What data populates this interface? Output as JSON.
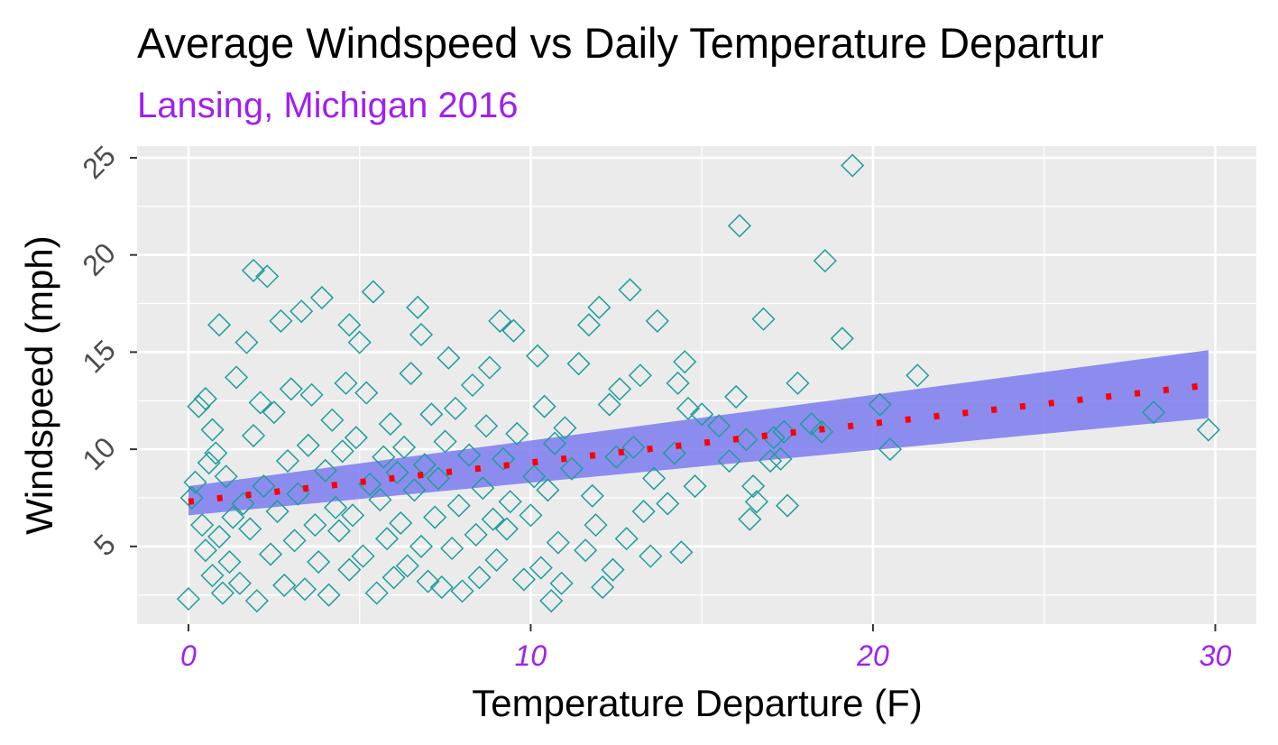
{
  "colors": {
    "subtitle": "#a020f0",
    "x_tick_labels": "#a020f0",
    "y_tick_labels": "#4d4d4d",
    "panel_background": "#ebebeb",
    "grid": "#ffffff",
    "points": "#1f9e9a",
    "ribbon": "#7b7bf0",
    "fit_line": "#ff0000"
  },
  "chart_data": {
    "type": "scatter",
    "title": "Average Windspeed vs Daily Temperature Departur",
    "subtitle": "Lansing, Michigan 2016",
    "xlabel": "Temperature Departure (F)",
    "ylabel": "Windspeed (mph)",
    "xlim": [
      -1.5,
      31.2
    ],
    "ylim": [
      1,
      25.6
    ],
    "x_ticks": [
      0,
      10,
      20,
      30
    ],
    "x_tick_labels": [
      "0",
      "10",
      "20",
      "30"
    ],
    "y_ticks": [
      5,
      10,
      15,
      20,
      25
    ],
    "y_tick_labels": [
      "5",
      "10",
      "15",
      "20",
      "25"
    ],
    "grid": true,
    "marker": "open-diamond",
    "points": [
      [
        0.0,
        2.3
      ],
      [
        0.1,
        7.5
      ],
      [
        0.2,
        8.3
      ],
      [
        0.3,
        12.2
      ],
      [
        0.4,
        6.1
      ],
      [
        0.5,
        12.6
      ],
      [
        0.5,
        4.8
      ],
      [
        0.6,
        9.3
      ],
      [
        0.7,
        3.5
      ],
      [
        0.7,
        11.0
      ],
      [
        0.8,
        9.8
      ],
      [
        0.9,
        16.4
      ],
      [
        0.9,
        5.5
      ],
      [
        1.0,
        2.6
      ],
      [
        1.1,
        8.6
      ],
      [
        1.2,
        4.2
      ],
      [
        1.3,
        6.5
      ],
      [
        1.4,
        13.7
      ],
      [
        1.5,
        3.1
      ],
      [
        1.6,
        7.2
      ],
      [
        1.7,
        15.5
      ],
      [
        1.8,
        5.9
      ],
      [
        1.9,
        10.7
      ],
      [
        1.9,
        19.2
      ],
      [
        2.0,
        2.2
      ],
      [
        2.1,
        12.4
      ],
      [
        2.2,
        8.1
      ],
      [
        2.3,
        18.9
      ],
      [
        2.4,
        4.6
      ],
      [
        2.5,
        11.9
      ],
      [
        2.6,
        6.8
      ],
      [
        2.7,
        16.6
      ],
      [
        2.8,
        3.0
      ],
      [
        2.9,
        9.4
      ],
      [
        3.0,
        13.1
      ],
      [
        3.1,
        5.3
      ],
      [
        3.2,
        7.7
      ],
      [
        3.3,
        17.1
      ],
      [
        3.4,
        2.8
      ],
      [
        3.5,
        10.2
      ],
      [
        3.6,
        12.8
      ],
      [
        3.7,
        6.1
      ],
      [
        3.8,
        4.2
      ],
      [
        3.9,
        17.8
      ],
      [
        4.0,
        8.9
      ],
      [
        4.1,
        2.5
      ],
      [
        4.2,
        11.5
      ],
      [
        4.3,
        7.0
      ],
      [
        4.4,
        5.8
      ],
      [
        4.5,
        9.9
      ],
      [
        4.6,
        13.4
      ],
      [
        4.7,
        3.8
      ],
      [
        4.7,
        16.4
      ],
      [
        4.8,
        6.6
      ],
      [
        4.9,
        10.6
      ],
      [
        5.0,
        15.5
      ],
      [
        5.1,
        4.5
      ],
      [
        5.2,
        12.9
      ],
      [
        5.3,
        8.2
      ],
      [
        5.4,
        18.1
      ],
      [
        5.5,
        2.6
      ],
      [
        5.6,
        7.4
      ],
      [
        5.7,
        9.6
      ],
      [
        5.8,
        5.4
      ],
      [
        5.9,
        11.3
      ],
      [
        6.0,
        3.4
      ],
      [
        6.1,
        8.8
      ],
      [
        6.2,
        6.2
      ],
      [
        6.3,
        10.1
      ],
      [
        6.4,
        4.0
      ],
      [
        6.5,
        13.9
      ],
      [
        6.6,
        7.9
      ],
      [
        6.7,
        17.3
      ],
      [
        6.8,
        5.0
      ],
      [
        6.8,
        15.9
      ],
      [
        6.9,
        9.2
      ],
      [
        7.0,
        3.2
      ],
      [
        7.1,
        11.8
      ],
      [
        7.2,
        6.5
      ],
      [
        7.3,
        8.5
      ],
      [
        7.4,
        2.9
      ],
      [
        7.5,
        10.4
      ],
      [
        7.6,
        14.7
      ],
      [
        7.7,
        4.9
      ],
      [
        7.8,
        12.1
      ],
      [
        7.9,
        7.1
      ],
      [
        8.0,
        2.7
      ],
      [
        8.2,
        9.7
      ],
      [
        8.3,
        13.3
      ],
      [
        8.4,
        5.6
      ],
      [
        8.5,
        3.4
      ],
      [
        8.6,
        8.0
      ],
      [
        8.7,
        11.2
      ],
      [
        8.8,
        14.2
      ],
      [
        8.9,
        6.4
      ],
      [
        9.0,
        4.3
      ],
      [
        9.1,
        16.6
      ],
      [
        9.2,
        9.5
      ],
      [
        9.3,
        5.9
      ],
      [
        9.4,
        7.3
      ],
      [
        9.5,
        16.1
      ],
      [
        9.6,
        10.8
      ],
      [
        9.8,
        3.3
      ],
      [
        10.0,
        6.6
      ],
      [
        10.1,
        8.6
      ],
      [
        10.2,
        14.8
      ],
      [
        10.3,
        3.9
      ],
      [
        10.4,
        12.2
      ],
      [
        10.5,
        7.9
      ],
      [
        10.6,
        2.2
      ],
      [
        10.7,
        10.3
      ],
      [
        10.8,
        5.2
      ],
      [
        10.9,
        3.1
      ],
      [
        11.0,
        11.1
      ],
      [
        11.2,
        9.0
      ],
      [
        11.4,
        14.4
      ],
      [
        11.6,
        4.8
      ],
      [
        11.7,
        16.4
      ],
      [
        11.8,
        7.6
      ],
      [
        11.9,
        6.1
      ],
      [
        12.0,
        17.3
      ],
      [
        12.1,
        2.9
      ],
      [
        12.3,
        12.3
      ],
      [
        12.4,
        3.8
      ],
      [
        12.5,
        9.6
      ],
      [
        12.6,
        13.1
      ],
      [
        12.8,
        5.4
      ],
      [
        12.9,
        18.2
      ],
      [
        13.0,
        10.1
      ],
      [
        13.2,
        13.8
      ],
      [
        13.3,
        6.8
      ],
      [
        13.5,
        4.5
      ],
      [
        13.6,
        8.5
      ],
      [
        13.7,
        16.6
      ],
      [
        14.0,
        7.2
      ],
      [
        14.2,
        9.8
      ],
      [
        14.3,
        13.4
      ],
      [
        14.4,
        4.7
      ],
      [
        14.5,
        14.5
      ],
      [
        14.6,
        12.1
      ],
      [
        14.8,
        8.1
      ],
      [
        15.0,
        11.8
      ],
      [
        15.5,
        11.2
      ],
      [
        15.8,
        9.4
      ],
      [
        16.0,
        12.7
      ],
      [
        16.1,
        21.5
      ],
      [
        16.3,
        10.5
      ],
      [
        16.4,
        6.4
      ],
      [
        16.5,
        8.1
      ],
      [
        16.6,
        7.3
      ],
      [
        16.8,
        16.7
      ],
      [
        17.0,
        9.4
      ],
      [
        17.1,
        10.6
      ],
      [
        17.3,
        9.5
      ],
      [
        17.4,
        10.9
      ],
      [
        17.5,
        7.1
      ],
      [
        17.8,
        13.4
      ],
      [
        18.2,
        11.3
      ],
      [
        18.5,
        10.9
      ],
      [
        18.6,
        19.7
      ],
      [
        19.1,
        15.7
      ],
      [
        19.4,
        24.6
      ],
      [
        20.2,
        12.3
      ],
      [
        20.5,
        10.0
      ],
      [
        21.3,
        13.8
      ],
      [
        28.2,
        11.9
      ],
      [
        29.8,
        11.0
      ]
    ],
    "fit_line": {
      "style": "dotted",
      "x": [
        0,
        29.8
      ],
      "y": [
        7.3,
        13.3
      ]
    },
    "confidence_band": {
      "x": [
        0,
        29.8
      ],
      "lower": [
        6.6,
        11.6
      ],
      "upper": [
        8.1,
        15.1
      ]
    }
  }
}
